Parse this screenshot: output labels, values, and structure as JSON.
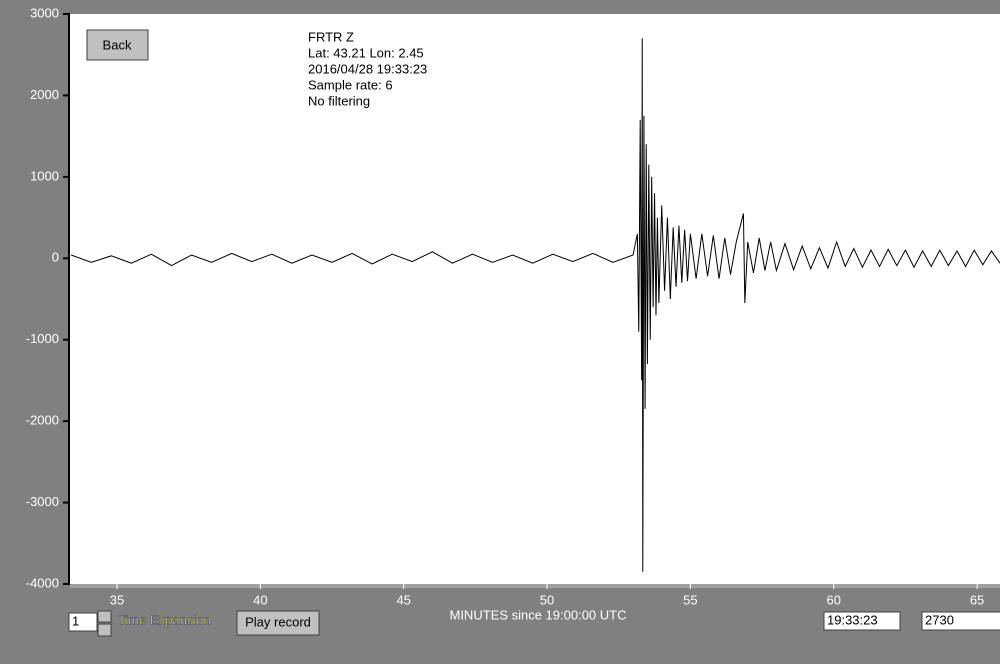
{
  "chart_data": {
    "type": "line",
    "annotations": [
      "FRTR  Z",
      "Lat: 43.21 Lon: 2.45",
      "2016/04/28 19:33:23",
      "Sample rate: 6",
      "No filtering"
    ],
    "xlabel": "MINUTES since 19:00:00 UTC",
    "xlim": [
      33.36,
      65.8
    ],
    "ylim": [
      -4000,
      3000
    ],
    "xticks": [
      35,
      40,
      45,
      50,
      55,
      60,
      65
    ],
    "yticks": [
      3000,
      2000,
      1000,
      0,
      -1000,
      -2000,
      -3000,
      -4000
    ],
    "color": "#000000",
    "x": [
      33.4,
      34.1,
      34.8,
      35.5,
      36.2,
      36.9,
      37.6,
      38.3,
      39.0,
      39.7,
      40.4,
      41.1,
      41.8,
      42.5,
      43.2,
      43.9,
      44.6,
      45.3,
      46.0,
      46.7,
      47.4,
      48.1,
      48.8,
      49.5,
      50.2,
      50.9,
      51.6,
      52.3,
      53.0,
      53.15,
      53.2,
      53.25,
      53.3,
      53.32,
      53.34,
      53.38,
      53.42,
      53.46,
      53.5,
      53.55,
      53.6,
      53.65,
      53.7,
      53.75,
      53.8,
      53.85,
      53.9,
      54.0,
      54.1,
      54.2,
      54.3,
      54.4,
      54.5,
      54.6,
      54.7,
      54.8,
      54.9,
      55.0,
      55.2,
      55.4,
      55.6,
      55.8,
      56.0,
      56.2,
      56.4,
      56.6,
      56.85,
      56.9,
      57.0,
      57.2,
      57.4,
      57.6,
      57.8,
      58.0,
      58.3,
      58.6,
      58.9,
      59.2,
      59.5,
      59.8,
      60.1,
      60.4,
      60.7,
      61.0,
      61.3,
      61.6,
      61.9,
      62.2,
      62.5,
      62.8,
      63.1,
      63.4,
      63.7,
      64.0,
      64.3,
      64.6,
      64.9,
      65.2,
      65.5,
      65.8
    ],
    "values": [
      40,
      -50,
      30,
      -60,
      50,
      -90,
      40,
      -50,
      60,
      -40,
      50,
      -60,
      40,
      -50,
      60,
      -70,
      50,
      -40,
      80,
      -60,
      50,
      -50,
      40,
      -60,
      50,
      -40,
      60,
      -50,
      40,
      300,
      -900,
      1700,
      -1500,
      2700,
      -3850,
      1750,
      -1850,
      1400,
      -1300,
      1150,
      -1000,
      1000,
      -600,
      800,
      -700,
      500,
      -550,
      650,
      -400,
      500,
      -500,
      380,
      -350,
      400,
      -300,
      350,
      -280,
      300,
      -250,
      300,
      -220,
      280,
      -250,
      250,
      -200,
      200,
      550,
      -550,
      200,
      -180,
      250,
      -150,
      200,
      -150,
      180,
      -140,
      150,
      -130,
      130,
      -120,
      200,
      -100,
      120,
      -110,
      100,
      -100,
      110,
      -90,
      100,
      -110,
      90,
      -100,
      100,
      -90,
      90,
      -100,
      100,
      -80,
      90,
      -60
    ]
  },
  "controls": {
    "back": "Back",
    "expansion_value": "1",
    "expansion_label": "Time Expansion",
    "play": "Play record",
    "time_box": "19:33:23",
    "count_box": "2730"
  }
}
